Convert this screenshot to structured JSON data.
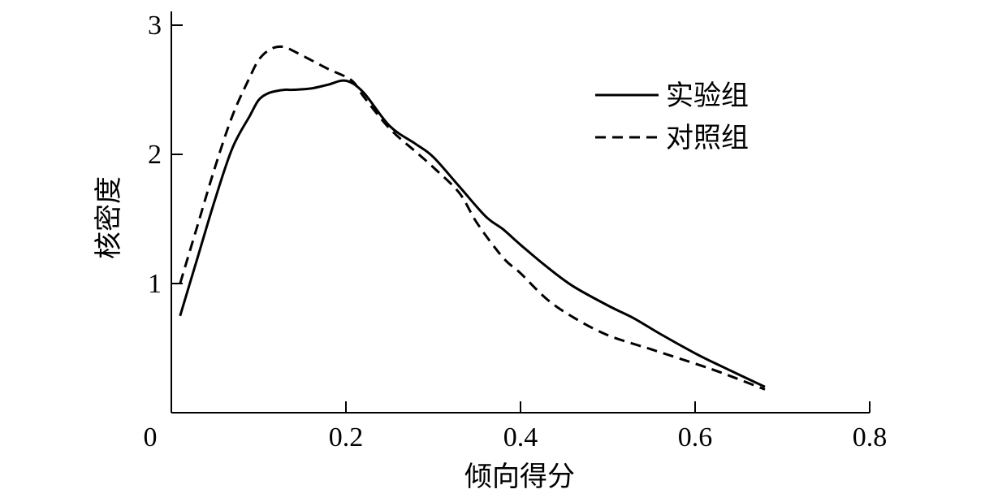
{
  "chart_data": {
    "type": "line",
    "xlabel": "倾向得分",
    "ylabel": "核密度",
    "xlim": [
      0,
      0.8
    ],
    "ylim": [
      0,
      3
    ],
    "xticks": [
      0,
      0.2,
      0.4,
      0.6,
      0.8
    ],
    "xtick_labels": [
      "0",
      "0.2",
      "0.4",
      "0.6",
      "0.8"
    ],
    "yticks": [
      1,
      2,
      3
    ],
    "ytick_labels": [
      "1",
      "2",
      "3"
    ],
    "grid": false,
    "legend_position": "top-right",
    "series": [
      {
        "name": "实验组",
        "style": "solid",
        "color": "#000000",
        "x": [
          0.01,
          0.03,
          0.05,
          0.07,
          0.09,
          0.1,
          0.11,
          0.12,
          0.13,
          0.14,
          0.16,
          0.18,
          0.2,
          0.22,
          0.25,
          0.28,
          0.3,
          0.33,
          0.36,
          0.38,
          0.4,
          0.43,
          0.46,
          0.5,
          0.53,
          0.56,
          0.6,
          0.63,
          0.68
        ],
        "values": [
          0.75,
          1.2,
          1.65,
          2.05,
          2.3,
          2.42,
          2.47,
          2.49,
          2.5,
          2.5,
          2.51,
          2.54,
          2.57,
          2.48,
          2.22,
          2.08,
          1.98,
          1.75,
          1.52,
          1.42,
          1.3,
          1.13,
          0.98,
          0.83,
          0.73,
          0.61,
          0.46,
          0.36,
          0.2
        ]
      },
      {
        "name": "对照组",
        "style": "dashed",
        "color": "#000000",
        "x": [
          0.01,
          0.03,
          0.05,
          0.07,
          0.09,
          0.1,
          0.11,
          0.12,
          0.13,
          0.14,
          0.16,
          0.18,
          0.2,
          0.21,
          0.22,
          0.25,
          0.28,
          0.3,
          0.33,
          0.35,
          0.38,
          0.4,
          0.43,
          0.46,
          0.5,
          0.55,
          0.6,
          0.63,
          0.68
        ],
        "values": [
          1.0,
          1.45,
          1.9,
          2.3,
          2.6,
          2.73,
          2.8,
          2.83,
          2.83,
          2.8,
          2.73,
          2.66,
          2.6,
          2.55,
          2.45,
          2.2,
          2.02,
          1.9,
          1.7,
          1.47,
          1.2,
          1.08,
          0.88,
          0.74,
          0.6,
          0.49,
          0.38,
          0.31,
          0.18
        ]
      }
    ]
  }
}
